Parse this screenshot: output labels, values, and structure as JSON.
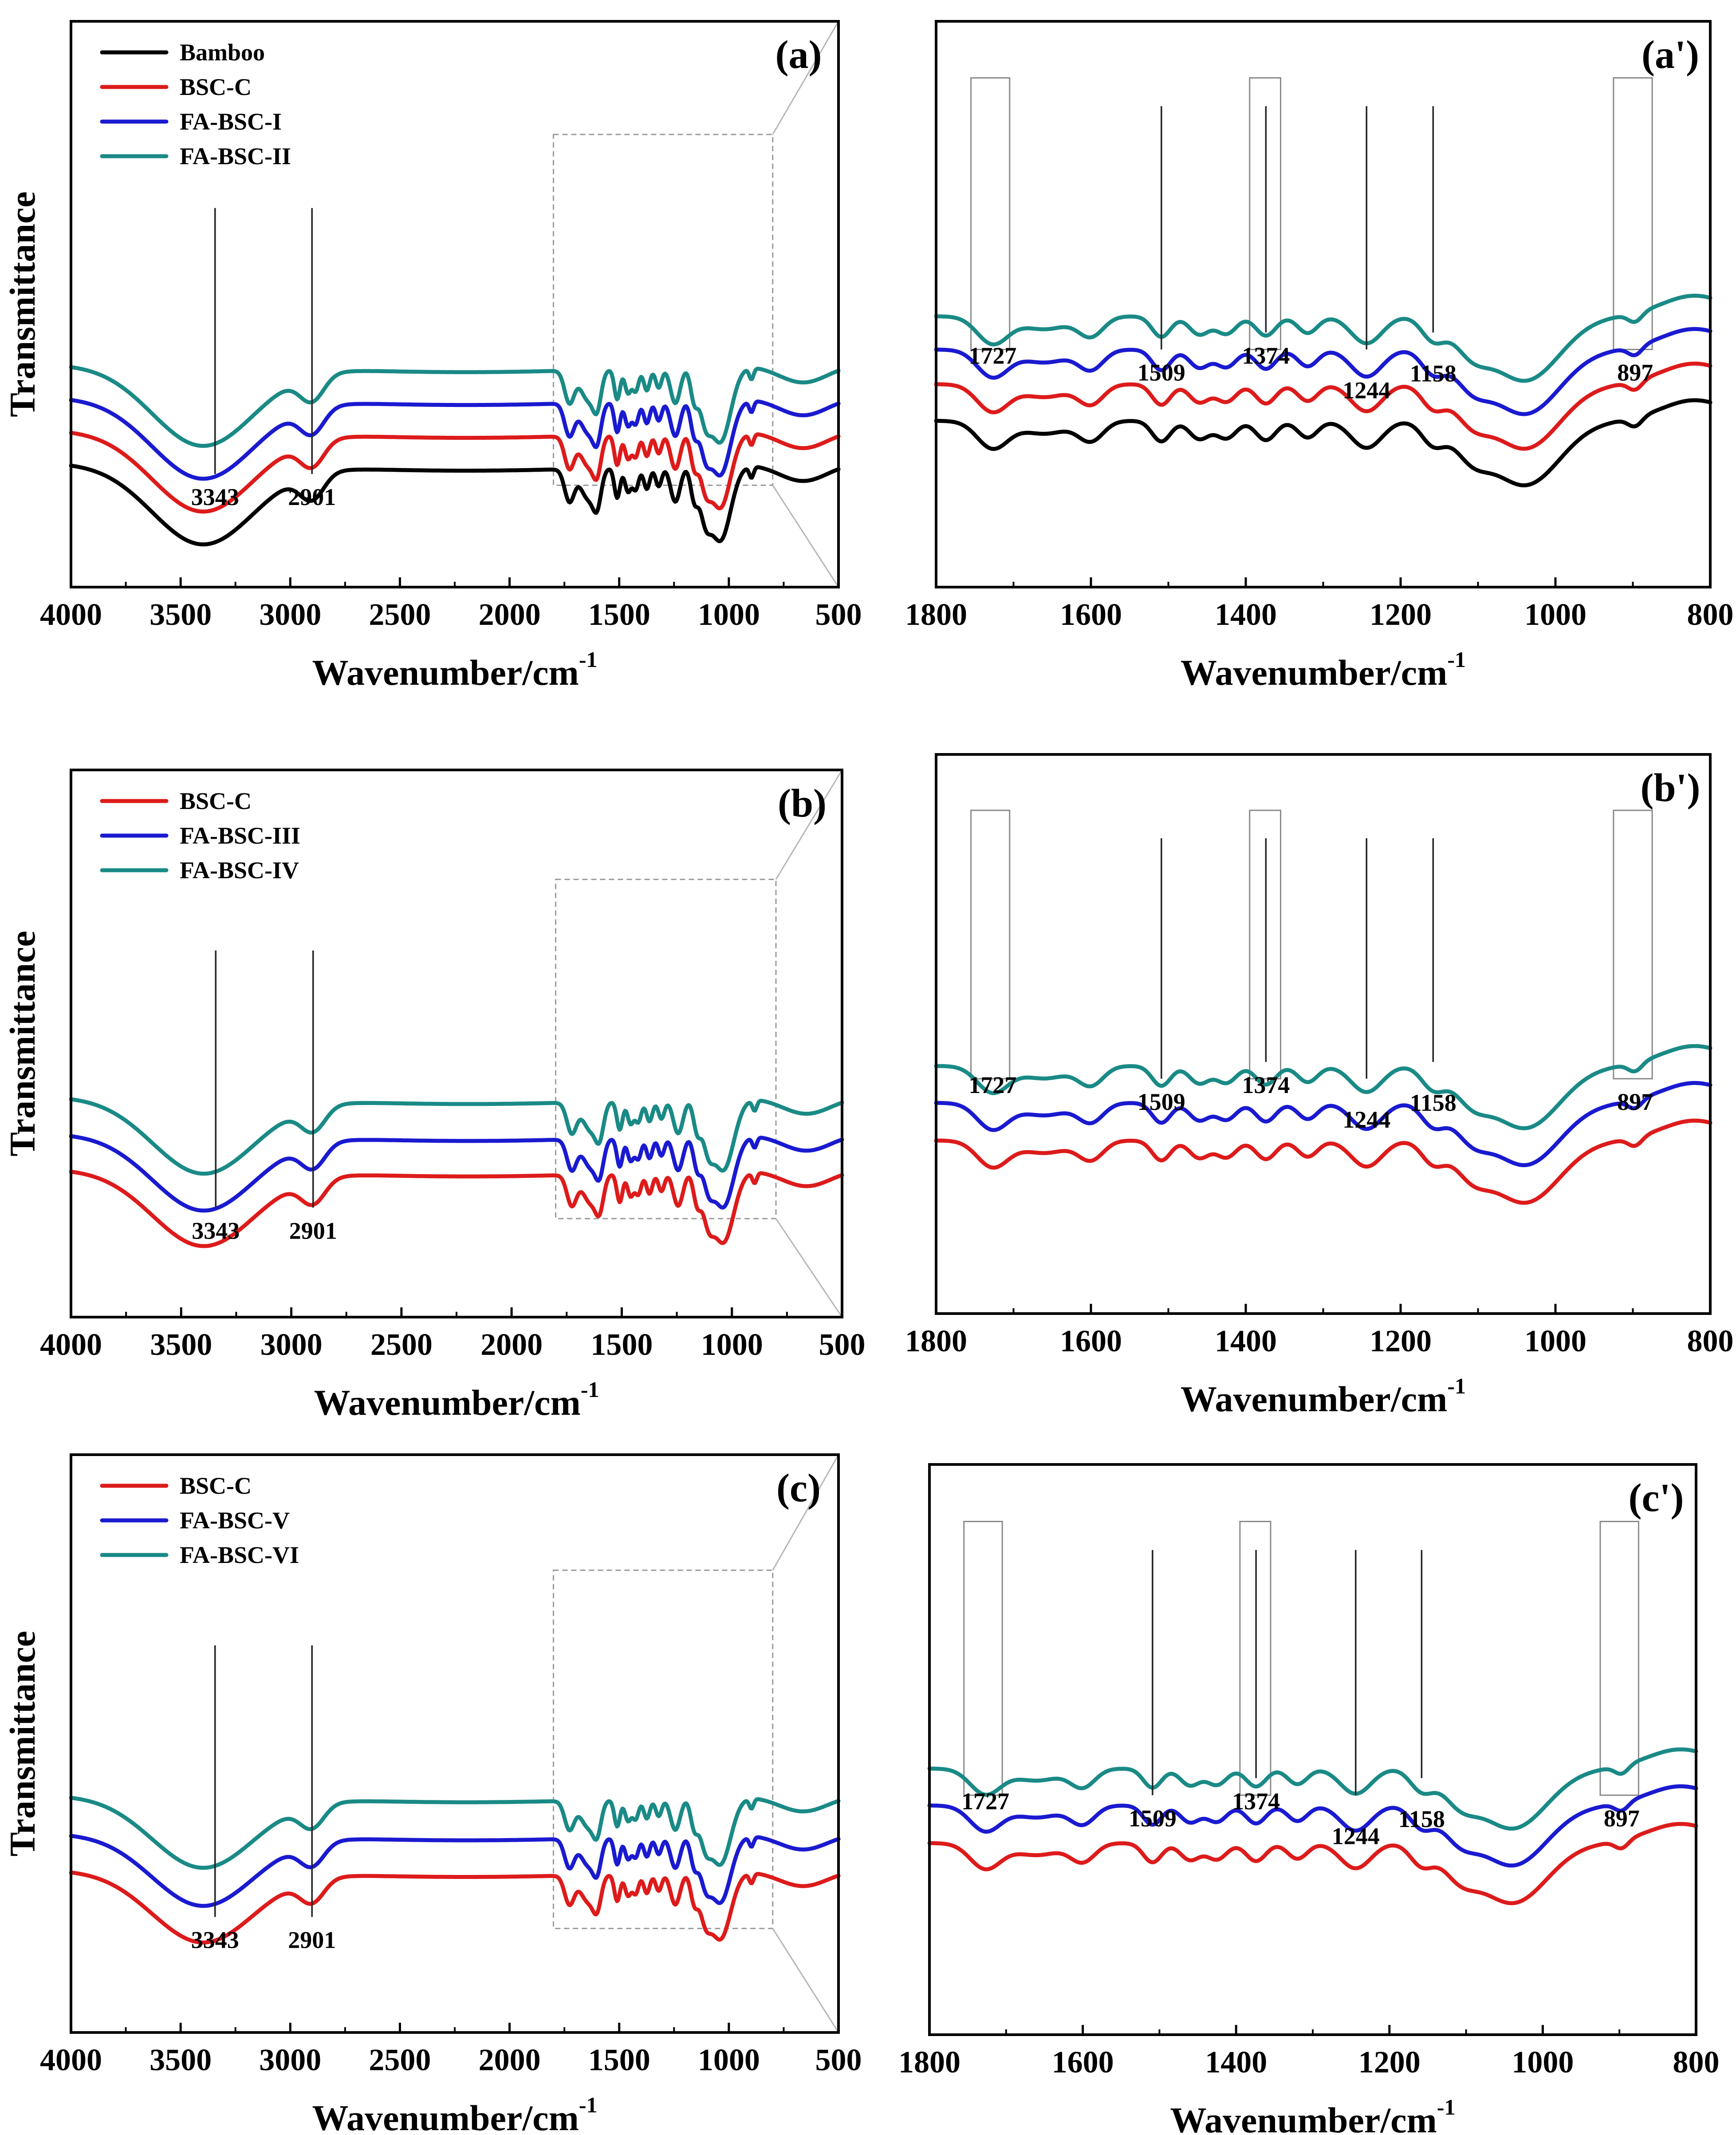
{
  "colors": {
    "Bamboo": "#000000",
    "BSC-C": "#dd1b1b",
    "FA-BSC-I": "#1a1ad0",
    "FA-BSC-II": "#1a8a86",
    "FA-BSC-III": "#1a1ad0",
    "FA-BSC-IV": "#1a8a86",
    "FA-BSC-V": "#1a1ad0",
    "FA-BSC-VI": "#1a8a86"
  },
  "chart_data": [
    {
      "id": "a",
      "title": "(a)",
      "type": "line",
      "xlabel": "Wavenumber/cm",
      "xlabel_sup": "-1",
      "ylabel": "Transmittance",
      "xlim": [
        4000,
        500
      ],
      "xticks": [
        4000,
        3500,
        3000,
        2500,
        2000,
        1500,
        1000,
        500
      ],
      "legend": [
        "Bamboo",
        "BSC-C",
        "FA-BSC-I",
        "FA-BSC-II"
      ],
      "series": [
        {
          "name": "FA-BSC-II",
          "offset": 1.55
        },
        {
          "name": "FA-BSC-I",
          "offset": 1.05
        },
        {
          "name": "BSC-C",
          "offset": 0.55
        },
        {
          "name": "Bamboo",
          "offset": 0.05
        }
      ],
      "annotations": [
        {
          "x": 3343,
          "label": "3343"
        },
        {
          "x": 2901,
          "label": "2901"
        }
      ],
      "zoom_range": [
        1800,
        800
      ]
    },
    {
      "id": "a2",
      "title": "(a')",
      "type": "line",
      "xlabel": "Wavenumber/cm",
      "xlabel_sup": "-1",
      "xlim": [
        1800,
        800
      ],
      "xticks": [
        1800,
        1600,
        1400,
        1200,
        1000,
        800
      ],
      "series": [
        {
          "name": "FA-BSC-II",
          "offset": 1.62
        },
        {
          "name": "FA-BSC-I",
          "offset": 1.12
        },
        {
          "name": "BSC-C",
          "offset": 0.6
        },
        {
          "name": "Bamboo",
          "offset": 0.05
        }
      ],
      "annotations": [
        {
          "x": 1727,
          "label": "1727"
        },
        {
          "x": 1509,
          "label": "1509"
        },
        {
          "x": 1374,
          "label": "1374"
        },
        {
          "x": 1244,
          "label": "1244"
        },
        {
          "x": 1158,
          "label": "1158"
        },
        {
          "x": 897,
          "label": "897"
        }
      ]
    },
    {
      "id": "b",
      "title": "(b)",
      "type": "line",
      "xlabel": "Wavenumber/cm",
      "xlabel_sup": "-1",
      "ylabel": "Transmittance",
      "xlim": [
        4000,
        500
      ],
      "xticks": [
        4000,
        3500,
        3000,
        2500,
        2000,
        1500,
        1000,
        500
      ],
      "legend": [
        "BSC-C",
        "FA-BSC-III",
        "FA-BSC-IV"
      ],
      "series": [
        {
          "name": "FA-BSC-IV",
          "offset": 1.12
        },
        {
          "name": "FA-BSC-III",
          "offset": 0.6
        },
        {
          "name": "BSC-C",
          "offset": 0.1
        }
      ],
      "annotations": [
        {
          "x": 3343,
          "label": "3343"
        },
        {
          "x": 2901,
          "label": "2901"
        }
      ],
      "zoom_range": [
        1800,
        800
      ]
    },
    {
      "id": "b2",
      "title": "(b')",
      "type": "line",
      "xlabel": "Wavenumber/cm",
      "xlabel_sup": "-1",
      "xlim": [
        1800,
        800
      ],
      "xticks": [
        1800,
        1600,
        1400,
        1200,
        1000,
        800
      ],
      "series": [
        {
          "name": "FA-BSC-IV",
          "offset": 1.2
        },
        {
          "name": "FA-BSC-III",
          "offset": 0.68
        },
        {
          "name": "BSC-C",
          "offset": 0.15
        }
      ],
      "annotations": [
        {
          "x": 1727,
          "label": "1727"
        },
        {
          "x": 1509,
          "label": "1509"
        },
        {
          "x": 1374,
          "label": "1374"
        },
        {
          "x": 1244,
          "label": "1244"
        },
        {
          "x": 1158,
          "label": "1158"
        },
        {
          "x": 897,
          "label": "897"
        }
      ]
    },
    {
      "id": "c",
      "title": "(c)",
      "type": "line",
      "xlabel": "Wavenumber/cm",
      "xlabel_sup": "-1",
      "ylabel": "Transmittance",
      "xlim": [
        4000,
        500
      ],
      "xticks": [
        4000,
        3500,
        3000,
        2500,
        2000,
        1500,
        1000,
        500
      ],
      "legend": [
        "BSC-C",
        "FA-BSC-V",
        "FA-BSC-VI"
      ],
      "series": [
        {
          "name": "FA-BSC-VI",
          "offset": 1.12
        },
        {
          "name": "FA-BSC-V",
          "offset": 0.6
        },
        {
          "name": "BSC-C",
          "offset": 0.1
        }
      ],
      "annotations": [
        {
          "x": 3343,
          "label": "3343"
        },
        {
          "x": 2901,
          "label": "2901"
        }
      ],
      "zoom_range": [
        1800,
        800
      ]
    },
    {
      "id": "c2",
      "title": "(c')",
      "type": "line",
      "xlabel": "Wavenumber/cm",
      "xlabel_sup": "-1",
      "xlim": [
        1800,
        800
      ],
      "xticks": [
        1800,
        1600,
        1400,
        1200,
        1000,
        800
      ],
      "series": [
        {
          "name": "FA-BSC-VI",
          "offset": 1.2
        },
        {
          "name": "FA-BSC-V",
          "offset": 0.68
        },
        {
          "name": "BSC-C",
          "offset": 0.15
        }
      ],
      "annotations": [
        {
          "x": 1727,
          "label": "1727"
        },
        {
          "x": 1509,
          "label": "1509"
        },
        {
          "x": 1374,
          "label": "1374"
        },
        {
          "x": 1244,
          "label": "1244"
        },
        {
          "x": 1158,
          "label": "1158"
        },
        {
          "x": 897,
          "label": "897"
        }
      ]
    }
  ]
}
